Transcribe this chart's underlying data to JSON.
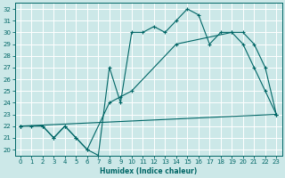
{
  "xlabel": "Humidex (Indice chaleur)",
  "bg_color": "#cce8e8",
  "grid_color": "#ffffff",
  "line_color": "#006666",
  "ylim": [
    19.5,
    32.5
  ],
  "xlim": [
    -0.5,
    23.5
  ],
  "yticks": [
    20,
    21,
    22,
    23,
    24,
    25,
    26,
    27,
    28,
    29,
    30,
    31,
    32
  ],
  "xticks": [
    0,
    1,
    2,
    3,
    4,
    5,
    6,
    7,
    8,
    9,
    10,
    11,
    12,
    13,
    14,
    15,
    16,
    17,
    18,
    19,
    20,
    21,
    22,
    23
  ],
  "line1_x": [
    0,
    1,
    2,
    3,
    4,
    5,
    6,
    7,
    8,
    9,
    10,
    11,
    12,
    13,
    14,
    15,
    16,
    17,
    18,
    19,
    20,
    21,
    22,
    23
  ],
  "line1_y": [
    22,
    22,
    22,
    21,
    22,
    21,
    20,
    19.5,
    27,
    24,
    30,
    30,
    30.5,
    30,
    31,
    32,
    31.5,
    29,
    30,
    30,
    30,
    29,
    27,
    23
  ],
  "line2_x": [
    0,
    2,
    3,
    4,
    5,
    6,
    8,
    9,
    10,
    14,
    19,
    20,
    21,
    22,
    23
  ],
  "line2_y": [
    22,
    22,
    21,
    22,
    21,
    20,
    24,
    24.5,
    25,
    29,
    30,
    29,
    27,
    25,
    23
  ],
  "line3_x": [
    0,
    23
  ],
  "line3_y": [
    22,
    23
  ]
}
